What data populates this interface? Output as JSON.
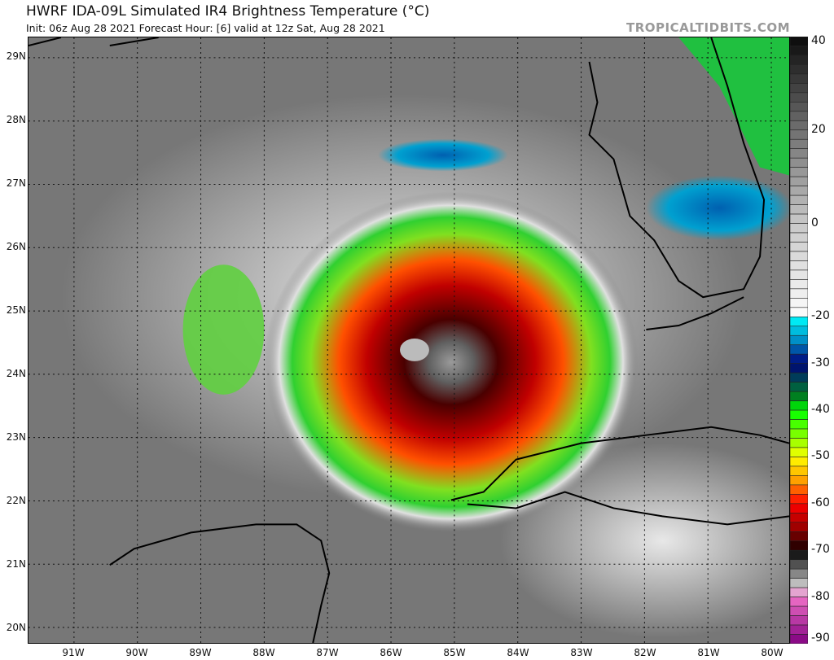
{
  "header": {
    "title": "HWRF IDA-09L Simulated IR4 Brightness Temperature (°C)",
    "subtitle": "Init: 06z Aug 28 2021   Forecast Hour: [6]   valid at 12z Sat, Aug 28 2021",
    "brand": "TROPICALTIDBITS.COM"
  },
  "map": {
    "lat_labels": [
      "29N",
      "28N",
      "27N",
      "26N",
      "25N",
      "24N",
      "23N",
      "22N",
      "21N",
      "20N"
    ],
    "lon_labels": [
      "91W",
      "90W",
      "89W",
      "88W",
      "87W",
      "86W",
      "85W",
      "84W",
      "83W",
      "82W",
      "81W",
      "80W"
    ]
  },
  "colorbar": {
    "range": [
      -90,
      40
    ],
    "labels": [
      "40",
      "20",
      "0",
      "-20",
      "-30",
      "-40",
      "-50",
      "-60",
      "-70",
      "-80",
      "-90"
    ],
    "stops": [
      [
        40,
        "#0a0a0a"
      ],
      [
        20,
        "#707070"
      ],
      [
        0,
        "#c8c8c8"
      ],
      [
        -19,
        "#fafafa"
      ],
      [
        -20,
        "#00ffff"
      ],
      [
        -25,
        "#0090c8"
      ],
      [
        -30,
        "#000078"
      ],
      [
        -34,
        "#005050"
      ],
      [
        -37,
        "#008020"
      ],
      [
        -40,
        "#00ff00"
      ],
      [
        -48,
        "#c0ff00"
      ],
      [
        -50,
        "#ffff00"
      ],
      [
        -55,
        "#ffa000"
      ],
      [
        -60,
        "#ff0000"
      ],
      [
        -65,
        "#a00000"
      ],
      [
        -69,
        "#300000"
      ],
      [
        -70,
        "#000000"
      ],
      [
        -78,
        "#d8d8d8"
      ],
      [
        -80,
        "#f070c8"
      ],
      [
        -90,
        "#800080"
      ]
    ]
  }
}
